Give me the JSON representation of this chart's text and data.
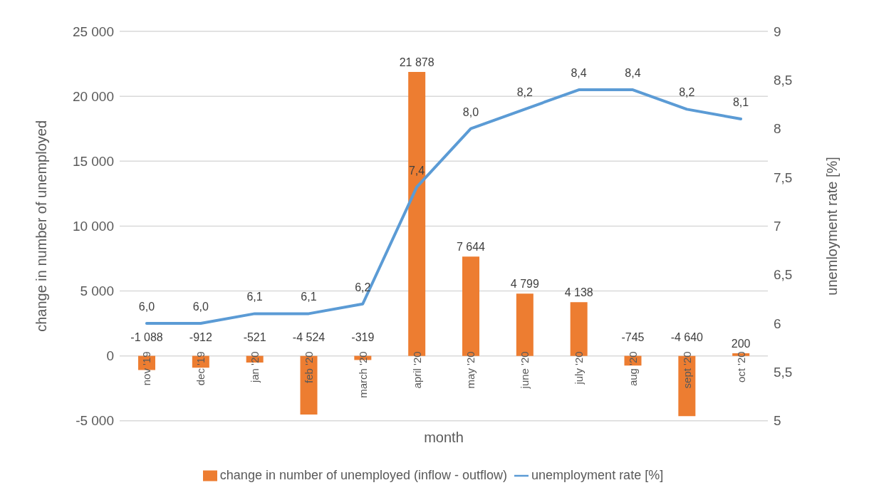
{
  "chart_data": {
    "type": "bar",
    "xlabel": "month",
    "ylabel": "change in number of unemployed",
    "y2label": "unemloyment rate [%]",
    "categories": [
      "nov '19",
      "dec '19",
      "jan '20",
      "feb '20",
      "march '20",
      "april '20",
      "may '20",
      "june '20",
      "july '20",
      "aug '20",
      "sept '20",
      "oct '20"
    ],
    "series": [
      {
        "name": "change in number of unemployed (inflow - outflow)",
        "color": "#ed7d31",
        "values": [
          -1088,
          -912,
          -521,
          -4524,
          -319,
          21878,
          7644,
          4799,
          4138,
          -745,
          -4640,
          200
        ],
        "value_labels": [
          "-1 088",
          "-912",
          "-521",
          "-4 524",
          "-319",
          "21 878",
          "7 644",
          "4 799",
          "4 138",
          "-745",
          "-4 640",
          "200"
        ]
      },
      {
        "type": "line",
        "axis": "y2",
        "name": "unemployment rate [%]",
        "color": "#5b9bd5",
        "values": [
          6.0,
          6.0,
          6.1,
          6.1,
          6.2,
          7.4,
          8.0,
          8.2,
          8.4,
          8.4,
          8.2,
          8.1
        ],
        "value_labels": [
          "6,0",
          "6,0",
          "6,1",
          "6,1",
          "6,2",
          "7,4",
          "8,0",
          "8,2",
          "8,4",
          "8,4",
          "8,2",
          "8,1"
        ]
      }
    ],
    "ylim": [
      -5000,
      25000
    ],
    "yticks": [
      {
        "value": -5000,
        "label": "-5 000"
      },
      0,
      {
        "value": 5000,
        "label": "5 000"
      },
      {
        "value": 10000,
        "label": "10 000"
      },
      {
        "value": 15000,
        "label": "15 000"
      },
      {
        "value": 20000,
        "label": "20 000"
      },
      {
        "value": 25000,
        "label": "25 000"
      }
    ],
    "y2lim": [
      5,
      9
    ],
    "y2ticks": [
      5,
      {
        "value": 5.5,
        "label": "5,5"
      },
      6,
      {
        "value": 6.5,
        "label": "6,5"
      },
      7,
      {
        "value": 7.5,
        "label": "7,5"
      },
      8,
      {
        "value": 8.5,
        "label": "8,5"
      },
      9
    ],
    "grid": "y",
    "legend": "bottom",
    "marker": "none",
    "line_style": "solid"
  }
}
